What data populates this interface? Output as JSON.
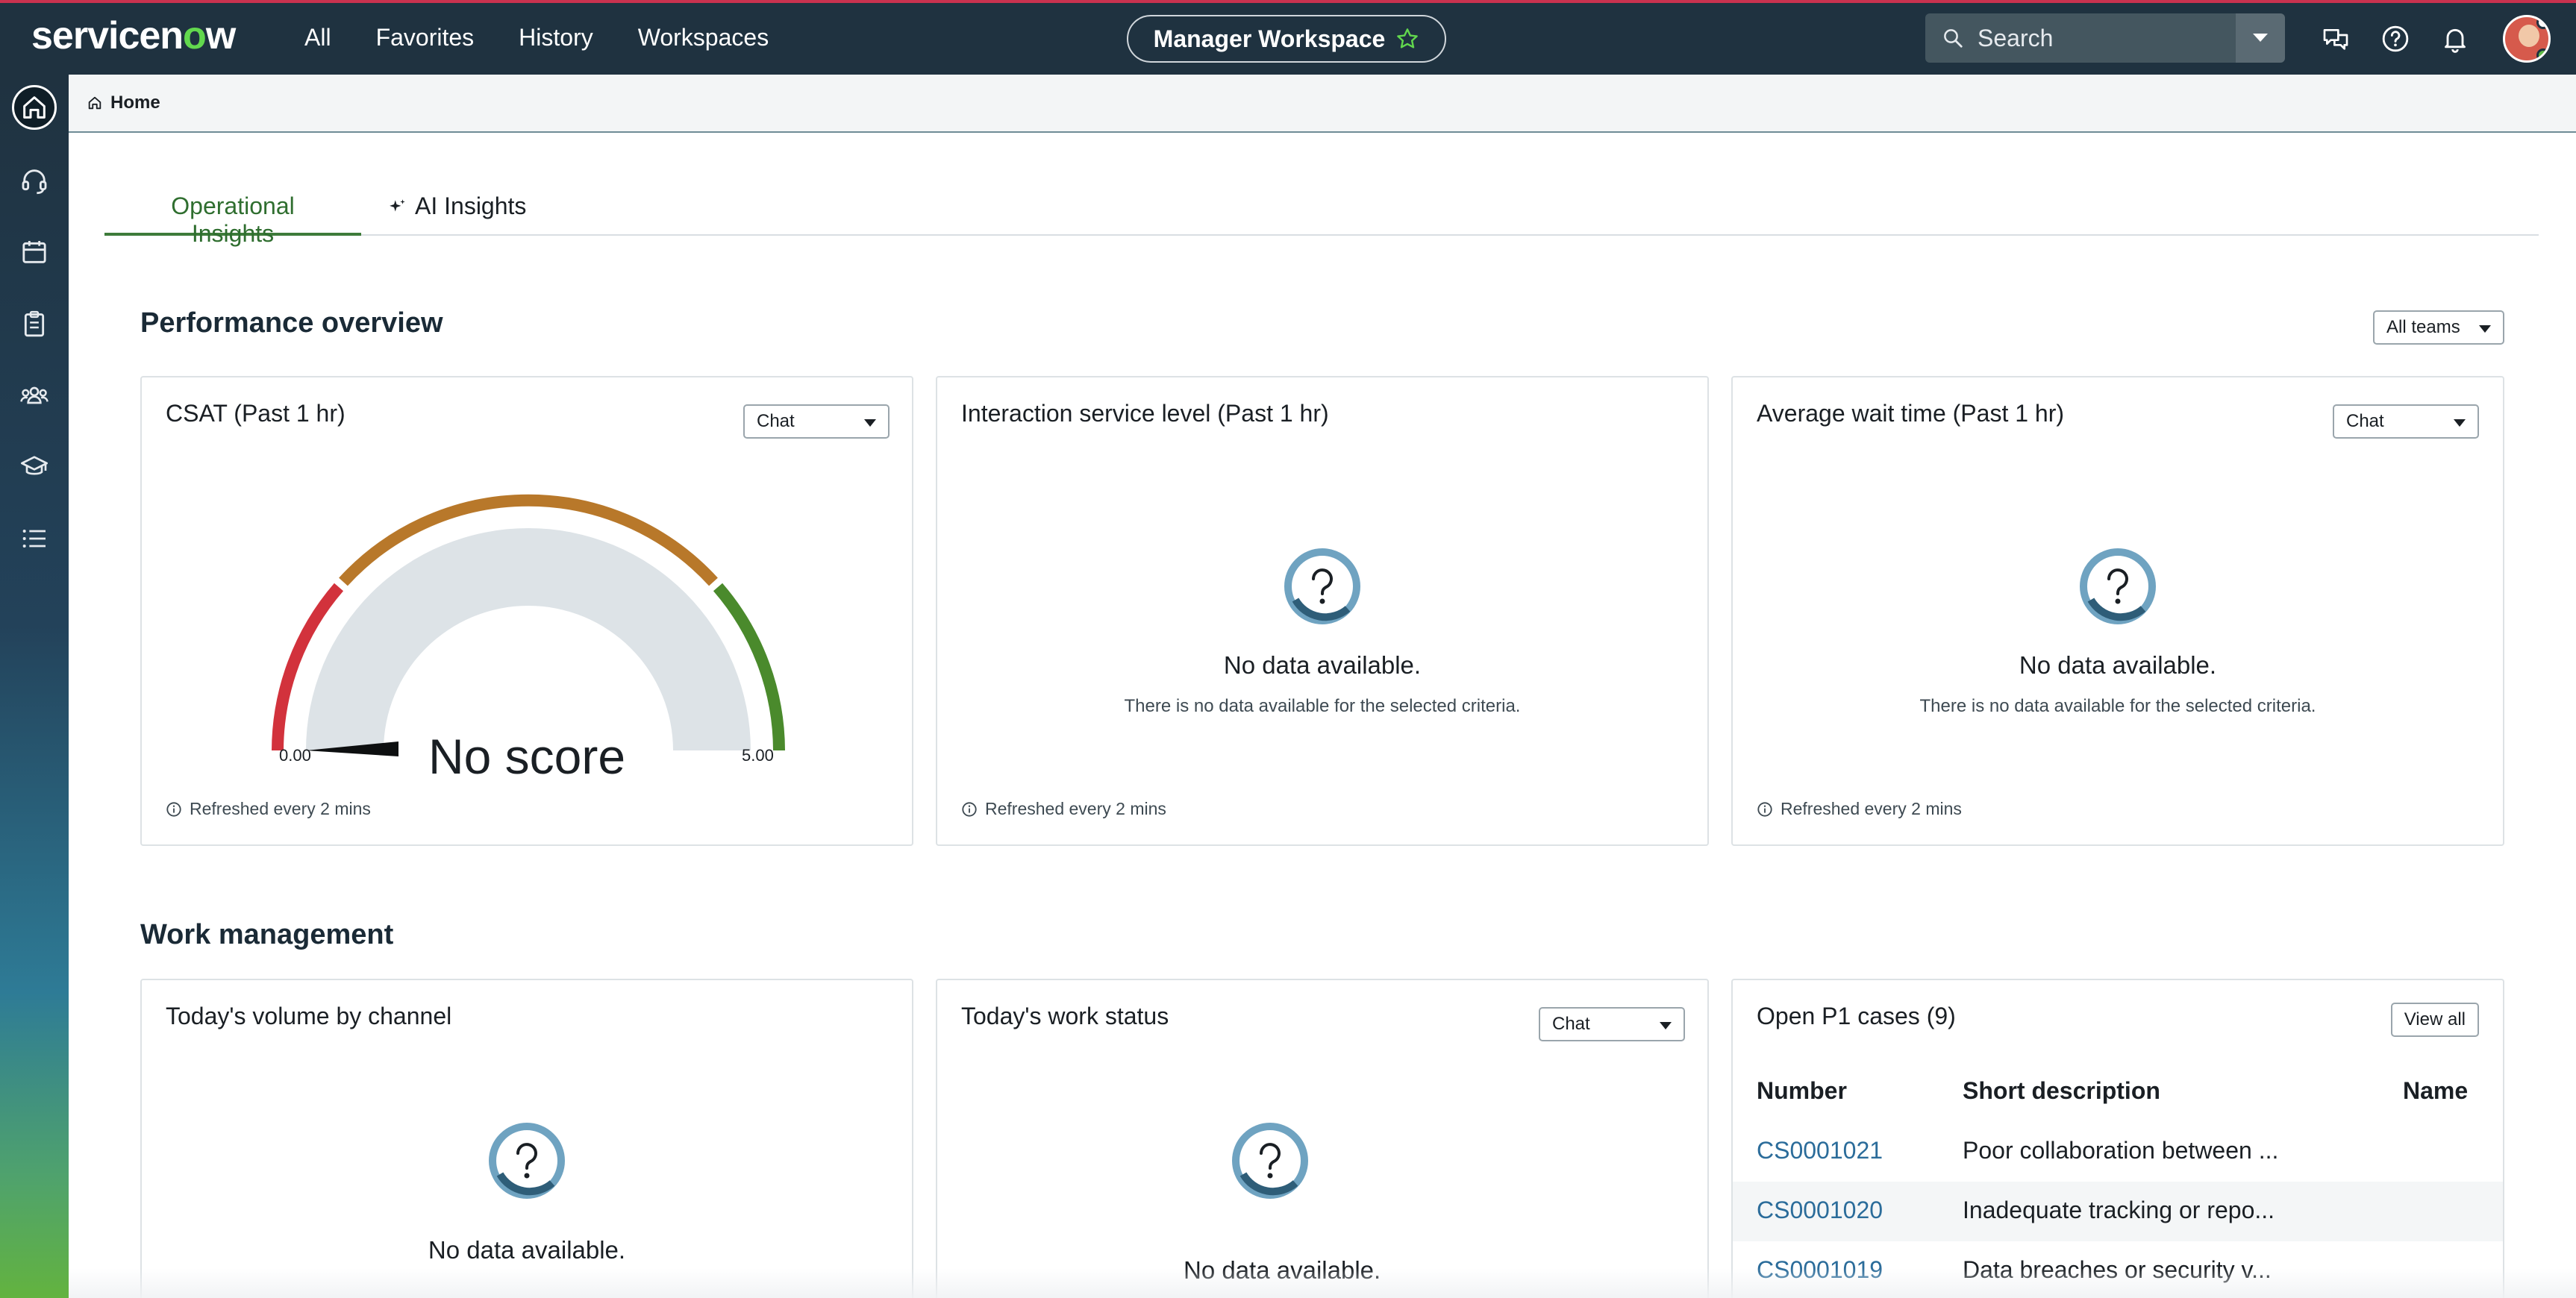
{
  "header": {
    "logo_text_a": "servicen",
    "logo_text_o": "o",
    "logo_text_b": "w",
    "nav": [
      "All",
      "Favorites",
      "History",
      "Workspaces"
    ],
    "workspace_label": "Manager Workspace",
    "search_placeholder": "Search"
  },
  "breadcrumb": {
    "home_label": "Home"
  },
  "tabs": [
    {
      "label": "Operational Insights",
      "active": true
    },
    {
      "label": "AI Insights",
      "active": false
    }
  ],
  "performance": {
    "title": "Performance overview",
    "teams_filter": "All teams",
    "csat": {
      "title": "CSAT (Past 1 hr)",
      "channel": "Chat",
      "score_text": "No score",
      "min_label": "0.00",
      "max_label": "5.00",
      "refresh": "Refreshed every 2 mins"
    },
    "service_level": {
      "title": "Interaction service level (Past 1 hr)",
      "no_data": "No data available.",
      "no_data_detail": "There is no data available for the selected criteria.",
      "refresh": "Refreshed every 2 mins"
    },
    "wait_time": {
      "title": "Average wait time (Past 1 hr)",
      "channel": "Chat",
      "no_data": "No data available.",
      "no_data_detail": "There is no data available for the selected criteria.",
      "refresh": "Refreshed every 2 mins"
    }
  },
  "work": {
    "title": "Work management",
    "volume": {
      "title": "Today's volume by channel",
      "no_data": "No data available."
    },
    "status": {
      "title": "Today's work status",
      "channel": "Chat",
      "no_data": "No data available."
    },
    "p1": {
      "title": "Open P1 cases (9)",
      "view_all": "View all",
      "columns": [
        "Number",
        "Short description",
        "Name"
      ],
      "rows": [
        {
          "number": "CS0001021",
          "desc": "Poor collaboration between ..."
        },
        {
          "number": "CS0001020",
          "desc": "Inadequate tracking or repo..."
        },
        {
          "number": "CS0001019",
          "desc": "Data breaches or security v..."
        }
      ]
    }
  },
  "colors": {
    "header_bg": "#1f3240",
    "accent_green": "#3e7b3a",
    "link_blue": "#2b6c9a",
    "gauge_red": "#d2323c",
    "gauge_orange": "#b8782a",
    "gauge_green": "#4a8a2c"
  }
}
